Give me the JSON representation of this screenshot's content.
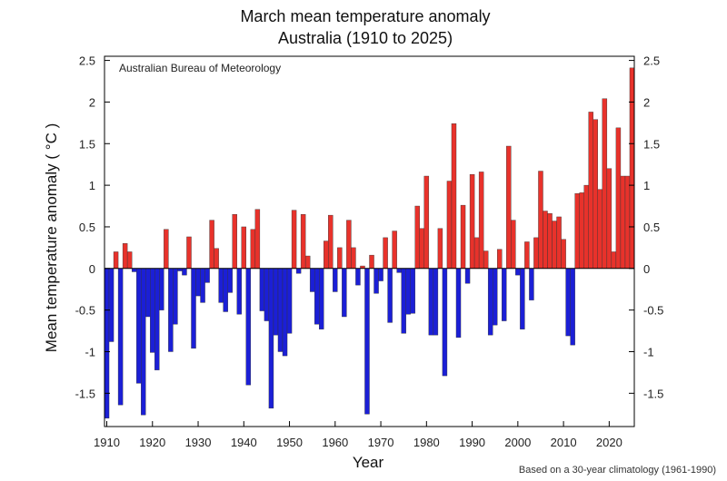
{
  "chart_data": {
    "type": "bar",
    "title_line1": "March mean temperature anomaly",
    "title_line2": "Australia (1910 to 2025)",
    "xlabel": "Year",
    "ylabel": "Mean temperature anomaly ( °C )",
    "source_label": "Australian Bureau of Meteorology",
    "footnote": "Based on a 30-year climatology (1961-1990)",
    "xlim": [
      1909.5,
      2025.5
    ],
    "ylim": [
      -1.9,
      2.55
    ],
    "x_ticks": [
      1910,
      1920,
      1930,
      1940,
      1950,
      1960,
      1970,
      1980,
      1990,
      2000,
      2010,
      2020
    ],
    "y_ticks": [
      -1.5,
      -1,
      -0.5,
      0,
      0.5,
      1,
      1.5,
      2,
      2.5
    ],
    "y_tick_labels": [
      "-1.5",
      "-1",
      "-0.5",
      "0",
      "0.5",
      "1",
      "1.5",
      "2",
      "2.5"
    ],
    "grid": false,
    "colors": {
      "positive": "#e8322b",
      "negative": "#1b1fd6"
    },
    "start_year": 1910,
    "values": [
      -1.8,
      -0.88,
      0.2,
      -1.64,
      0.3,
      0.2,
      -0.04,
      -1.38,
      -1.76,
      -0.58,
      -1.01,
      -1.22,
      -0.5,
      0.47,
      -1.0,
      -0.67,
      -0.03,
      -0.08,
      0.38,
      -0.96,
      -0.33,
      -0.41,
      -0.17,
      0.58,
      0.24,
      -0.41,
      -0.52,
      -0.29,
      0.65,
      -0.55,
      0.5,
      -1.4,
      0.47,
      0.71,
      -0.51,
      -0.63,
      -1.68,
      -0.8,
      -1.0,
      -1.05,
      -0.78,
      0.7,
      -0.06,
      0.65,
      0.15,
      -0.28,
      -0.67,
      -0.73,
      0.33,
      0.64,
      -0.28,
      0.25,
      -0.58,
      0.58,
      0.25,
      -0.2,
      0.03,
      -1.75,
      0.16,
      -0.3,
      -0.15,
      0.37,
      -0.65,
      0.45,
      -0.05,
      -0.78,
      -0.55,
      -0.54,
      0.75,
      0.48,
      1.11,
      -0.8,
      -0.8,
      0.48,
      -1.29,
      1.05,
      1.74,
      -0.83,
      0.76,
      -0.18,
      1.13,
      0.37,
      1.16,
      0.21,
      -0.8,
      -0.68,
      0.23,
      -0.63,
      1.47,
      0.58,
      -0.08,
      -0.73,
      0.32,
      -0.38,
      0.37,
      1.17,
      0.69,
      0.66,
      0.57,
      0.62,
      0.35,
      -0.81,
      -0.92,
      0.9,
      0.91,
      1.0,
      1.88,
      1.79,
      0.95,
      2.04,
      1.2,
      0.2,
      1.69,
      1.11,
      1.11,
      2.41
    ]
  }
}
